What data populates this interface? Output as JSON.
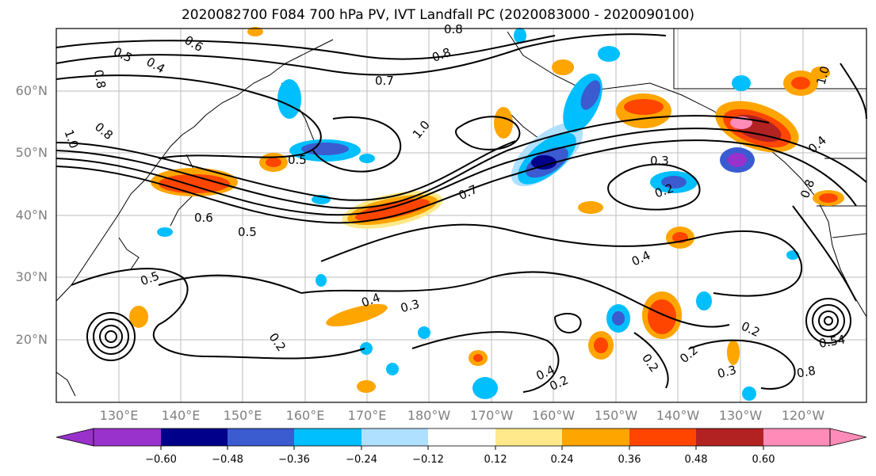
{
  "title": "2020082700 F084 700 hPa PV, IVT Landfall PC (2020083000 - 2020090100)",
  "lat_labels": [
    "60°N",
    "50°N",
    "40°N",
    "30°N",
    "20°N"
  ],
  "lon_labels": [
    "130°E",
    "140°E",
    "150°E",
    "160°E",
    "170°E",
    "180°W",
    "170°W",
    "160°W",
    "150°W",
    "140°W",
    "130°W",
    "120°W"
  ],
  "contour_labels": [
    "0.8",
    "0.6",
    "0.5",
    "0.4",
    "0.8",
    "1.0",
    "0.8",
    "0.7",
    "0.8",
    "1.0",
    "0.5",
    "0.7",
    "0.3",
    "0.2",
    "0.6",
    "0.5",
    "0.5",
    "0.4",
    "0.4",
    "0.3",
    "0.2",
    "0.4",
    "0.2",
    "0.2",
    "0.2",
    "0.3",
    "0.2",
    "0.54",
    "0.8",
    "0.4",
    "1.0",
    "0.8"
  ],
  "colorbar": {
    "ticks": [
      "−0.60",
      "−0.48",
      "−0.36",
      "−0.24",
      "−0.12",
      "0.12",
      "0.24",
      "0.36",
      "0.48",
      "0.60"
    ],
    "colors": [
      "#9932cc",
      "#00008b",
      "#3b5bd0",
      "#00bfff",
      "#b0e0ff",
      "#ffffff",
      "#ffe98a",
      "#ffa500",
      "#ff4500",
      "#b22222",
      "#ff8cb8"
    ]
  }
}
